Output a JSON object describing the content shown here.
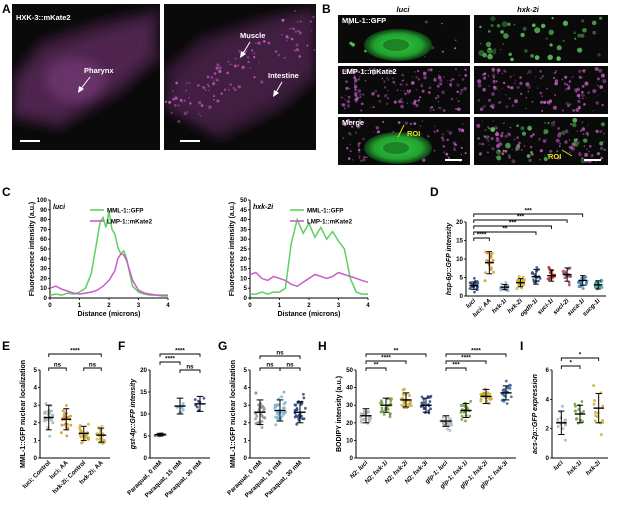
{
  "panel_labels": [
    "A",
    "B",
    "C",
    "D",
    "E",
    "F",
    "G",
    "H",
    "I"
  ],
  "colors": {
    "gfp": "#5ed060",
    "mkate": "#c85ec8",
    "micro_bg": "#0a0a0a",
    "roi": "#e8e020",
    "sig": "#000000"
  },
  "panel_a": {
    "marker": "HXK-3::mKate2",
    "labels": {
      "pharynx": "Pharynx",
      "muscle": "Muscle",
      "intestine": "Intestine"
    }
  },
  "panel_b": {
    "col_titles": [
      "luci",
      "hxk-2i"
    ],
    "row_labels": [
      "MML-1::GFP",
      "LMP-1::mKate2",
      "Merge"
    ],
    "roi_label": "ROI"
  },
  "chart_data": [
    {
      "panel": "C",
      "type": "line",
      "title": "luci",
      "xlabel": "Distance (microns)",
      "ylabel": "Fluorescence intensity (a.u.)",
      "xlim": [
        0,
        4
      ],
      "ylim": [
        0,
        100
      ],
      "xticks": [
        "0",
        "1",
        "2",
        "3",
        "4"
      ],
      "yticks": [
        "0",
        "10",
        "20",
        "30",
        "40",
        "50",
        "60",
        "70",
        "80",
        "90",
        "100"
      ],
      "legend_position": "top-right",
      "series": [
        {
          "name": "MML-1::GFP",
          "color": "#5ed060",
          "x": [
            0,
            0.2,
            0.4,
            0.6,
            0.8,
            1.0,
            1.2,
            1.4,
            1.6,
            1.7,
            1.8,
            1.9,
            2.0,
            2.1,
            2.2,
            2.3,
            2.4,
            2.5,
            2.6,
            2.7,
            2.8,
            3.0,
            3.2,
            3.4,
            3.6,
            3.8,
            4.0
          ],
          "y": [
            3,
            4,
            3,
            5,
            4,
            6,
            10,
            25,
            60,
            78,
            82,
            72,
            88,
            70,
            65,
            52,
            45,
            48,
            40,
            25,
            12,
            6,
            4,
            3,
            3,
            2,
            2
          ]
        },
        {
          "name": "LMP-1::mKate2",
          "color": "#c85ec8",
          "x": [
            0,
            0.2,
            0.4,
            0.6,
            0.8,
            1.0,
            1.2,
            1.4,
            1.6,
            1.8,
            2.0,
            2.2,
            2.3,
            2.4,
            2.5,
            2.6,
            2.7,
            2.8,
            3.0,
            3.2,
            3.4,
            3.6,
            3.8,
            4.0
          ],
          "y": [
            10,
            12,
            9,
            7,
            5,
            4,
            5,
            6,
            8,
            12,
            18,
            28,
            40,
            45,
            44,
            38,
            28,
            18,
            8,
            5,
            4,
            3,
            3,
            3
          ]
        }
      ]
    },
    {
      "panel": "C",
      "type": "line",
      "title": "hxk-2i",
      "xlabel": "Distance (microns)",
      "ylabel": "Fluorescence intensity (a.u.)",
      "xlim": [
        0,
        4
      ],
      "ylim": [
        0,
        50
      ],
      "xticks": [
        "0",
        "1",
        "2",
        "3",
        "4"
      ],
      "yticks": [
        "0",
        "5",
        "10",
        "15",
        "20",
        "25",
        "30",
        "35",
        "40",
        "45",
        "50"
      ],
      "legend_position": "top-right",
      "series": [
        {
          "name": "MML-1::GFP",
          "color": "#5ed060",
          "x": [
            0,
            0.2,
            0.4,
            0.6,
            0.8,
            1.0,
            1.2,
            1.4,
            1.6,
            1.8,
            2.0,
            2.2,
            2.4,
            2.6,
            2.8,
            3.0,
            3.2,
            3.4,
            3.6,
            3.8,
            4.0
          ],
          "y": [
            2,
            2,
            3,
            2,
            3,
            3,
            5,
            28,
            40,
            33,
            38,
            31,
            36,
            30,
            34,
            29,
            25,
            10,
            3,
            2,
            2
          ]
        },
        {
          "name": "LMP-1::mKate2",
          "color": "#c85ec8",
          "x": [
            0,
            0.2,
            0.4,
            0.6,
            0.8,
            1.0,
            1.2,
            1.4,
            1.6,
            1.8,
            2.0,
            2.2,
            2.4,
            2.6,
            2.8,
            3.0,
            3.2,
            3.4,
            3.6,
            3.8,
            4.0
          ],
          "y": [
            12,
            13,
            10,
            9,
            11,
            10,
            9,
            7,
            6,
            8,
            10,
            12,
            11,
            10,
            11,
            13,
            12,
            11,
            10,
            9,
            8
          ]
        }
      ]
    },
    {
      "panel": "D",
      "type": "scatter",
      "ylabel": "hsp-6p::GFP intensity",
      "ylim": [
        0,
        20
      ],
      "yticks": [
        "0",
        "5",
        "10",
        "15",
        "20"
      ],
      "categories": [
        "luci",
        "luci; AA",
        "hxk-1i",
        "hxk-2i",
        "ogdh-1i",
        "suci-1i",
        "sucl-2i",
        "suca-1i",
        "sucg-1i"
      ],
      "colors": [
        "#2a4a90",
        "#f0a020",
        "#a0c0e0",
        "#e8c020",
        "#2a5a9a",
        "#d8302a",
        "#c05070",
        "#5090d0",
        "#40b0b0"
      ],
      "means": [
        2.8,
        9,
        2.4,
        3.6,
        5.2,
        5.5,
        5.8,
        4.2,
        3.0
      ],
      "sds": [
        1.0,
        3.0,
        0.7,
        1.1,
        2.0,
        1.5,
        1.8,
        1.3,
        1.1
      ],
      "significance": [
        {
          "from": 0,
          "to": 1,
          "label": "****"
        },
        {
          "from": 0,
          "to": 4,
          "label": "**"
        },
        {
          "from": 0,
          "to": 5,
          "label": "***"
        },
        {
          "from": 0,
          "to": 6,
          "label": "***"
        },
        {
          "from": 0,
          "to": 7,
          "label": "***"
        }
      ]
    },
    {
      "panel": "E",
      "type": "scatter",
      "ylabel": "MML-1::GFP nuclear localization",
      "ylim": [
        0,
        5
      ],
      "yticks": [
        "0",
        "1",
        "2",
        "3",
        "4",
        "5"
      ],
      "categories": [
        "luci; Control",
        "luci; AA",
        "hxk-2i; Control",
        "hxk-2i; AA"
      ],
      "colors": [
        "#b8c4d0",
        "#f0a020",
        "#e8c020",
        "#f0d040"
      ],
      "means": [
        2.3,
        2.2,
        1.4,
        1.3
      ],
      "sds": [
        0.7,
        0.6,
        0.4,
        0.4
      ],
      "significance": [
        {
          "from": 0,
          "to": 3,
          "label": "****"
        },
        {
          "from": 0,
          "to": 1,
          "label": "ns"
        },
        {
          "from": 2,
          "to": 3,
          "label": "ns"
        }
      ]
    },
    {
      "panel": "F",
      "type": "scatter",
      "ylabel": "gst-4p::GFP intensity",
      "ylim": [
        0,
        20
      ],
      "yticks": [
        "0",
        "5",
        "10",
        "15",
        "20"
      ],
      "categories": [
        "Paraquat, 0 mM",
        "Paraquat, 15 mM",
        "Paraquat, 30 mM"
      ],
      "colors": [
        "#9090a0",
        "#80c8f0",
        "#2a4a90"
      ],
      "means": [
        5.3,
        11.8,
        12.3
      ],
      "sds": [
        0.3,
        1.8,
        1.7
      ],
      "significance": [
        {
          "from": 0,
          "to": 2,
          "label": "****"
        },
        {
          "from": 0,
          "to": 1,
          "label": "****"
        },
        {
          "from": 1,
          "to": 2,
          "label": "ns"
        }
      ]
    },
    {
      "panel": "G",
      "type": "scatter",
      "ylabel": "MML-1::GFP nuclear localization",
      "ylim": [
        0,
        5
      ],
      "yticks": [
        "0",
        "1",
        "2",
        "3",
        "4",
        "5"
      ],
      "categories": [
        "Paraquat, 0 mM",
        "Paraquat, 15 mM",
        "Paraquat, 30 mM"
      ],
      "colors": [
        "#a0a0a8",
        "#80c8f0",
        "#2a4a90"
      ],
      "means": [
        2.6,
        2.7,
        2.6
      ],
      "sds": [
        0.7,
        0.6,
        0.6
      ],
      "significance": [
        {
          "from": 0,
          "to": 2,
          "label": "ns"
        },
        {
          "from": 0,
          "to": 1,
          "label": "ns"
        },
        {
          "from": 1,
          "to": 2,
          "label": "ns"
        }
      ]
    },
    {
      "panel": "H",
      "type": "scatter",
      "ylabel": "BODIPY intensity (a.u.)",
      "ylim": [
        0,
        50
      ],
      "yticks": [
        "0",
        "10",
        "20",
        "30",
        "40",
        "50"
      ],
      "categories": [
        "N2; luci",
        "N2; hxk-1i",
        "N2; hxk-2i",
        "N2; hxk-3i",
        "glp-1; luci",
        "glp-1; hxk-1i",
        "glp-1; hxk-2i",
        "glp-1; hxk-3i"
      ],
      "colors": [
        "#c0c8d4",
        "#78b030",
        "#e8c020",
        "#2a4a90",
        "#c0c8d4",
        "#78b030",
        "#e8c020",
        "#3a70c0"
      ],
      "means": [
        24,
        30,
        33,
        30,
        21,
        27,
        35,
        37
      ],
      "sds": [
        4,
        4,
        4,
        4,
        3,
        4,
        4,
        4
      ],
      "significance": [
        {
          "from": 0,
          "to": 3,
          "label": "**"
        },
        {
          "from": 0,
          "to": 2,
          "label": "****"
        },
        {
          "from": 0,
          "to": 1,
          "label": "**"
        },
        {
          "from": 4,
          "to": 7,
          "label": "****"
        },
        {
          "from": 4,
          "to": 6,
          "label": "****"
        },
        {
          "from": 4,
          "to": 5,
          "label": "***"
        }
      ]
    },
    {
      "panel": "I",
      "type": "scatter",
      "ylabel": "acs-2p::GFP expression",
      "ylim": [
        0,
        6
      ],
      "yticks": [
        "0",
        "2",
        "4",
        "6"
      ],
      "categories": [
        "luci",
        "hxk-1i",
        "hxk-2i"
      ],
      "colors": [
        "#b8c4d0",
        "#78b030",
        "#e8c020"
      ],
      "means": [
        2.4,
        3.0,
        3.4
      ],
      "sds": [
        0.8,
        0.6,
        1.0
      ],
      "significance": [
        {
          "from": 0,
          "to": 2,
          "label": "*"
        },
        {
          "from": 0,
          "to": 1,
          "label": "*"
        }
      ]
    }
  ]
}
